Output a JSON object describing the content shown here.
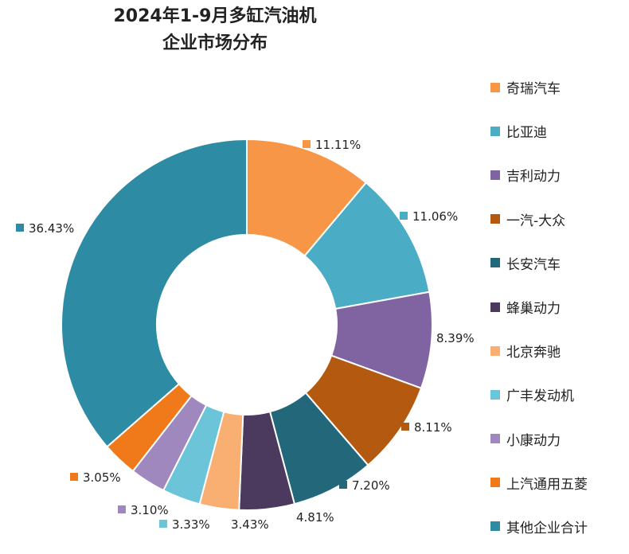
{
  "title_lines": [
    "2024年1-9月多缸汽油机",
    "企业市场分布"
  ],
  "chart_data": {
    "type": "pie",
    "style": "donut",
    "legend_position": "right",
    "categories": [
      "奇瑞汽车",
      "比亚迪",
      "吉利动力",
      "一汽-大众",
      "长安汽车",
      "蜂巢动力",
      "北京奔驰",
      "广丰发动机",
      "小康动力",
      "上汽通用五菱",
      "其他企业合计"
    ],
    "values": [
      11.11,
      11.06,
      8.39,
      8.11,
      7.2,
      4.81,
      3.43,
      3.33,
      3.1,
      3.05,
      36.43
    ],
    "labels": [
      "11.11%",
      "11.06%",
      "8.39%",
      "8.11%",
      "7.20%",
      "4.81%",
      "3.43%",
      "3.33%",
      "3.10%",
      "3.05%",
      "36.43%"
    ],
    "colors": [
      "#F79646",
      "#4BACC6",
      "#8064A2",
      "#B35A10",
      "#23687A",
      "#4B3A5E",
      "#F9AE72",
      "#6CC4D8",
      "#9F88BE",
      "#F07A1A",
      "#2E8BA4"
    ]
  }
}
